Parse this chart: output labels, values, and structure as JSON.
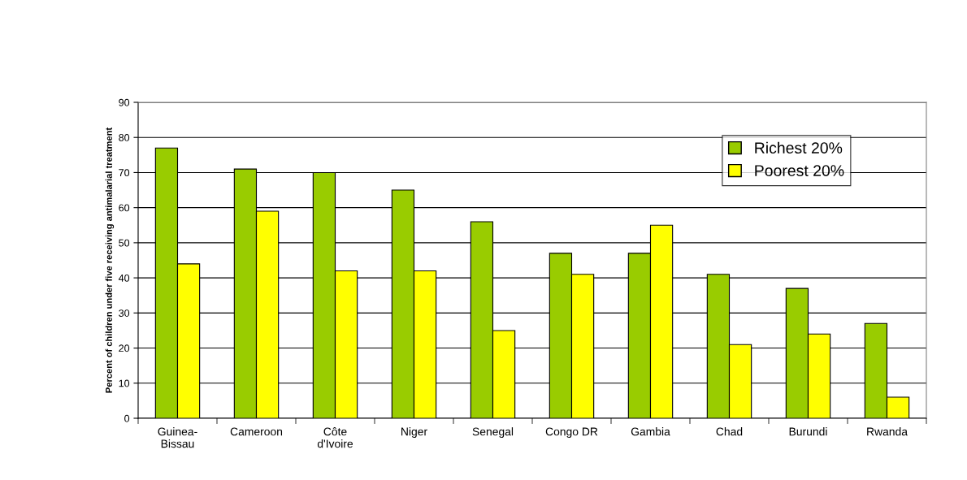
{
  "chart_data": {
    "type": "bar",
    "categories": [
      "Guinea-\nBissau",
      "Cameroon",
      "Côte\nd'Ivoire",
      "Niger",
      "Senegal",
      "Congo DR",
      "Gambia",
      "Chad",
      "Burundi",
      "Rwanda"
    ],
    "series": [
      {
        "name": "Richest 20%",
        "color": "#99cc00",
        "values": [
          77,
          71,
          70,
          65,
          56,
          47,
          47,
          41,
          37,
          27
        ]
      },
      {
        "name": "Poorest 20%",
        "color": "#ffff00",
        "values": [
          44,
          59,
          42,
          42,
          25,
          41,
          55,
          21,
          24,
          6
        ]
      }
    ],
    "ylabel": "Percent of children under five receiving antimalarial treatment",
    "ylim": [
      0,
      90
    ],
    "yticks": [
      0,
      10,
      20,
      30,
      40,
      50,
      60,
      70,
      80,
      90
    ],
    "grid": "y",
    "legend": "top right"
  }
}
